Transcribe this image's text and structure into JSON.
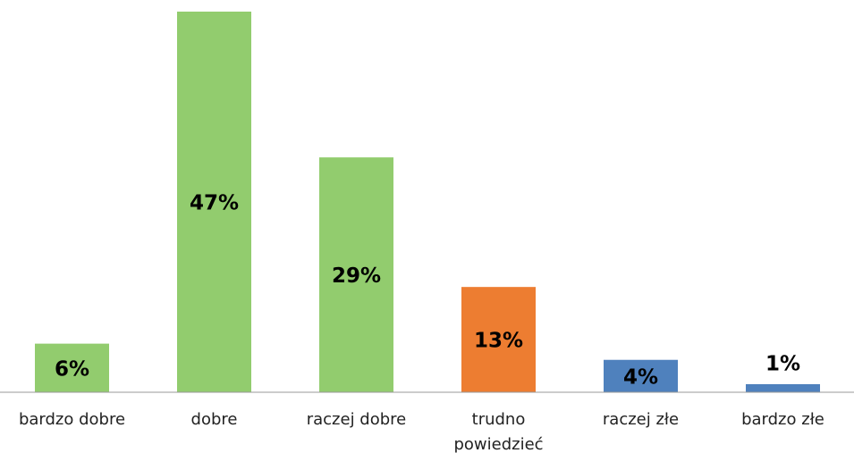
{
  "chart_data": {
    "type": "bar",
    "categories": [
      "bardzo dobre",
      "dobre",
      "raczej dobre",
      "trudno powiedzieć",
      "raczej złe",
      "bardzo złe"
    ],
    "values": [
      6,
      47,
      29,
      13,
      4,
      1
    ],
    "value_labels": [
      "6%",
      "47%",
      "29%",
      "13%",
      "4%",
      "1%"
    ],
    "colors": [
      "#92cc6e",
      "#92cc6e",
      "#92cc6e",
      "#ed7d31",
      "#4f81bd",
      "#4f81bd"
    ],
    "ylim": [
      0,
      47
    ]
  }
}
